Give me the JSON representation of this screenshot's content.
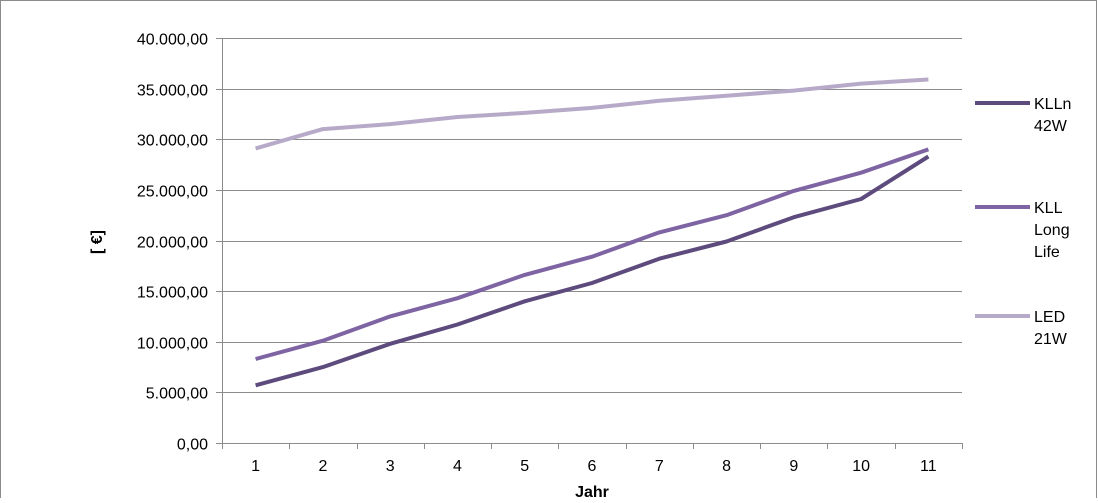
{
  "chart_data": {
    "type": "line",
    "title": "",
    "xlabel": "Jahr",
    "ylabel": "[ €]",
    "categories": [
      "1",
      "2",
      "3",
      "4",
      "5",
      "6",
      "7",
      "8",
      "9",
      "10",
      "11"
    ],
    "ylim": [
      0,
      40000
    ],
    "yticks": [
      0,
      5000,
      10000,
      15000,
      20000,
      25000,
      30000,
      35000,
      40000
    ],
    "ytick_labels": [
      "0,00",
      "5.000,00",
      "10.000,00",
      "15.000,00",
      "20.000,00",
      "25.000,00",
      "30.000,00",
      "35.000,00",
      "40.000,00"
    ],
    "grid": true,
    "legend_position": "right",
    "series": [
      {
        "name": "KLLn 42W",
        "legend_lines": [
          "KLLn",
          "42W"
        ],
        "color": "#5e4b7e",
        "values": [
          5700,
          7500,
          9800,
          11700,
          14000,
          15800,
          18200,
          19900,
          22300,
          24100,
          28300
        ]
      },
      {
        "name": "KLL Long Life",
        "legend_lines": [
          "KLL",
          "Long",
          "Life"
        ],
        "color": "#7e64a3",
        "values": [
          8300,
          10100,
          12500,
          14300,
          16600,
          18400,
          20800,
          22500,
          24900,
          26700,
          29000
        ]
      },
      {
        "name": "LED 21W",
        "legend_lines": [
          "LED",
          "21W"
        ],
        "color": "#b7aac9",
        "values": [
          29100,
          31000,
          31500,
          32200,
          32600,
          33100,
          33800,
          34300,
          34800,
          35500,
          35900
        ]
      }
    ]
  }
}
